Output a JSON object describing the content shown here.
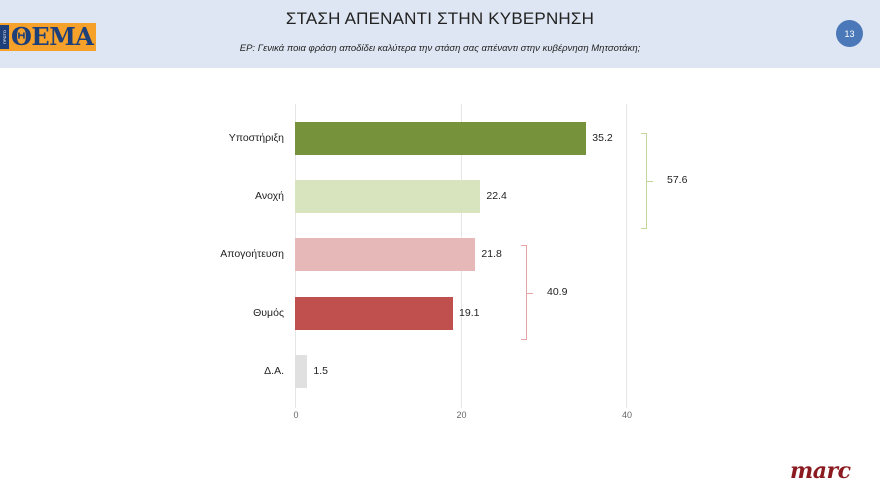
{
  "header": {
    "logo_text": "ΘΕΜΑ",
    "logo_strip": "ΠΡΩΤΟ",
    "title": "ΣΤΑΣΗ ΑΠΕΝΑΝΤΙ ΣΤΗΝ ΚΥΒΕΡΝΗΣΗ",
    "subtitle": "ΕΡ: Γενικά ποια φράση αποδίδει καλύτερα την στάση σας απέναντι στην κυβέρνηση Μητσοτάκη;",
    "page_number": "13"
  },
  "footer": {
    "brand": "marc"
  },
  "colors": {
    "header_bg": "#dde6f2",
    "logo_bg": "#f5a12a",
    "logo_text": "#1d3f7a",
    "badge": "#4a78b8",
    "support": "#76933c",
    "tolerance": "#d7e4bd",
    "disappointment": "#e6b9b8",
    "anger": "#c0504d",
    "na": "#e0e0e0",
    "bracket_green": "#c3d69b",
    "bracket_red": "#e6a5a4",
    "brand": "#8a1a1f"
  },
  "chart_data": {
    "type": "bar",
    "orientation": "horizontal",
    "title": "ΣΤΑΣΗ ΑΠΕΝΑΝΤΙ ΣΤΗΝ ΚΥΒΕΡΝΗΣΗ",
    "subtitle": "ΕΡ: Γενικά ποια φράση αποδίδει καλύτερα την στάση σας απέναντι στην κυβέρνηση Μητσοτάκη;",
    "categories": [
      "Υποστήριξη",
      "Ανοχή",
      "Απογοήτευση",
      "Θυμός",
      "Δ.Α."
    ],
    "values": [
      35.2,
      22.4,
      21.8,
      19.1,
      1.5
    ],
    "value_labels": [
      "35.2",
      "22.4",
      "21.8",
      "19.1",
      "1.5"
    ],
    "bar_colors": [
      "#76933c",
      "#d7e4bd",
      "#e6b9b8",
      "#c0504d",
      "#e0e0e0"
    ],
    "xlabel": "",
    "ylabel": "",
    "xlim": [
      0,
      40
    ],
    "x_ticks": [
      "0",
      "20",
      "40"
    ],
    "grid": true,
    "legend": null,
    "annotations": [
      {
        "type": "bracket",
        "spans": [
          "Υποστήριξη",
          "Ανοχή"
        ],
        "label": "57.6",
        "color": "#c3d69b"
      },
      {
        "type": "bracket",
        "spans": [
          "Απογοήτευση",
          "Θυμός"
        ],
        "label": "40.9",
        "color": "#e6a5a4"
      }
    ]
  }
}
